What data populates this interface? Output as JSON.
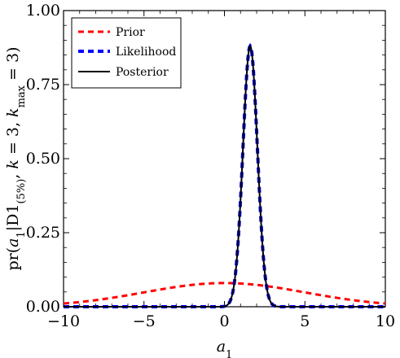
{
  "chart_data": {
    "type": "line",
    "xlabel": "a₁",
    "ylabel": "pr(a₁|D1(5%), k = 3, kmax = 3)",
    "xlim": [
      -10,
      10
    ],
    "ylim": [
      0,
      1.0
    ],
    "xticks": [
      -10,
      -5,
      0,
      5,
      10
    ],
    "yticks": [
      0.0,
      0.25,
      0.5,
      0.75,
      1.0
    ],
    "xtick_labels": [
      "−10",
      "−5",
      "0",
      "5",
      "10"
    ],
    "ytick_labels": [
      "0.00",
      "0.25",
      "0.50",
      "0.75",
      "1.00"
    ],
    "grid": false,
    "legend_position": "top-left",
    "series": [
      {
        "name": "Prior",
        "style": "dashed",
        "color": "#ff0000",
        "shape": "gaussian",
        "mean": 0.0,
        "sd": 5.0,
        "peak": 0.08
      },
      {
        "name": "Likelihood",
        "style": "dashed",
        "color": "#0000ff",
        "shape": "gaussian",
        "mean": 1.6,
        "sd": 0.45,
        "peak": 0.88
      },
      {
        "name": "Posterior",
        "style": "solid",
        "color": "#000000",
        "shape": "gaussian",
        "mean": 1.6,
        "sd": 0.45,
        "peak": 0.88
      }
    ]
  }
}
